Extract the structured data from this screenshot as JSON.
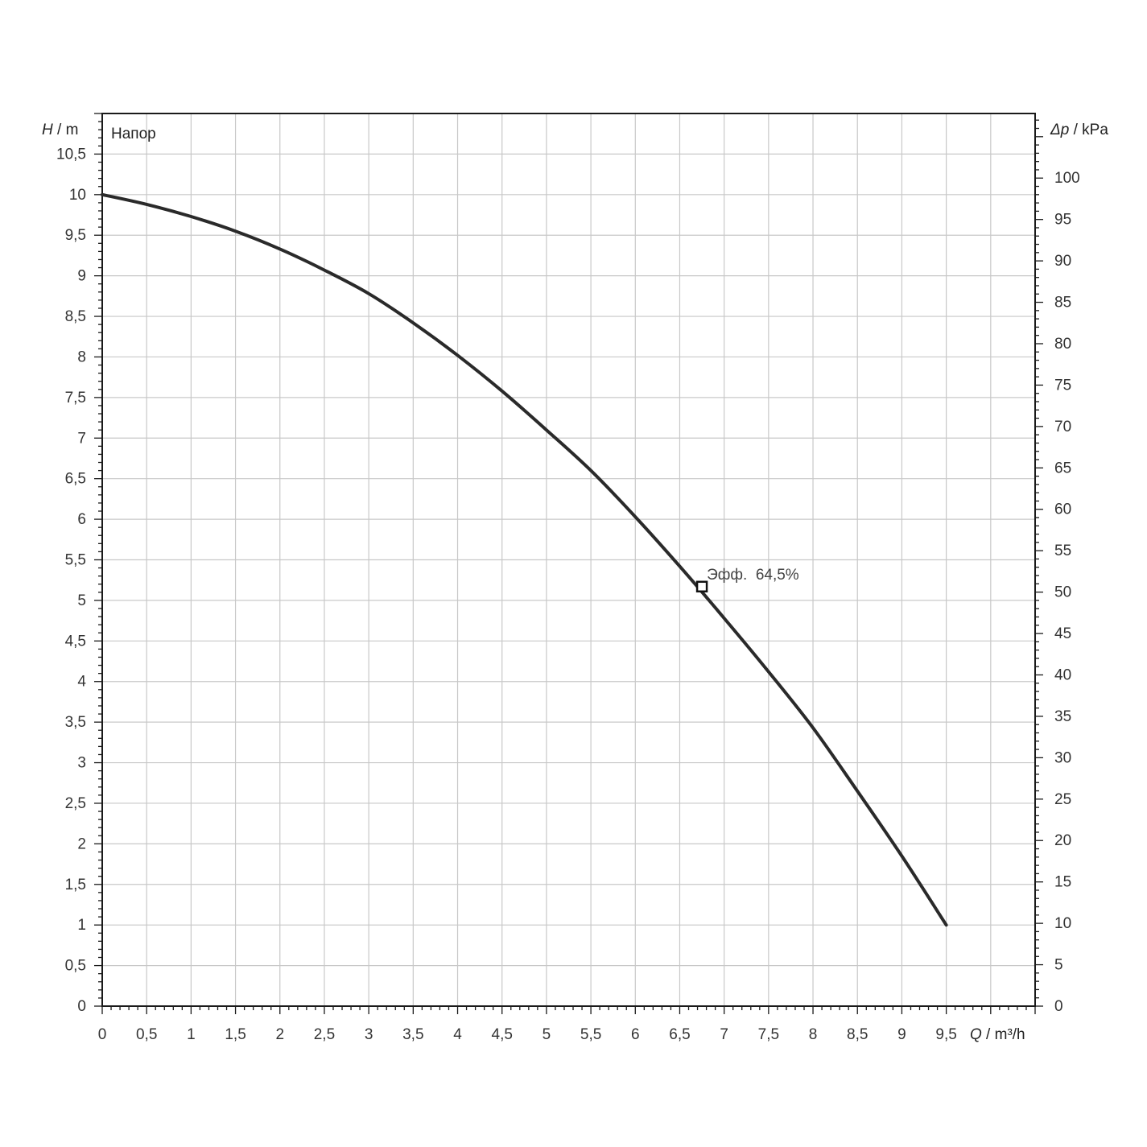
{
  "chart_data": {
    "type": "line",
    "legend_text": "Напор",
    "y_left_label": {
      "symbol": "H",
      "unit": " / m"
    },
    "y_right_label": {
      "symbol": "Δp",
      "unit": " / kPa"
    },
    "x_label": {
      "symbol": "Q",
      "unit": " / m³/h"
    },
    "xlim": [
      0,
      10.5
    ],
    "ylim_left": [
      0,
      11
    ],
    "ylim_right": [
      0,
      107.8
    ],
    "grid": true,
    "x_ticks": [
      "0",
      "0,5",
      "1",
      "1,5",
      "2",
      "2,5",
      "3",
      "3,5",
      "4",
      "4,5",
      "5",
      "5,5",
      "6",
      "6,5",
      "7",
      "7,5",
      "8",
      "8,5",
      "9",
      "9,5"
    ],
    "y_left_ticks": [
      "0",
      "0,5",
      "1",
      "1,5",
      "2",
      "2,5",
      "3",
      "3,5",
      "4",
      "4,5",
      "5",
      "5,5",
      "6",
      "6,5",
      "7",
      "7,5",
      "8",
      "8,5",
      "9",
      "9,5",
      "10",
      "10,5"
    ],
    "y_right_ticks": [
      "0",
      "5",
      "10",
      "15",
      "20",
      "25",
      "30",
      "35",
      "40",
      "45",
      "50",
      "55",
      "60",
      "65",
      "70",
      "75",
      "80",
      "85",
      "90",
      "95",
      "100"
    ],
    "series": [
      {
        "points": [
          [
            0,
            10.0
          ],
          [
            0.5,
            9.88
          ],
          [
            1,
            9.73
          ],
          [
            1.5,
            9.55
          ],
          [
            2,
            9.33
          ],
          [
            2.5,
            9.07
          ],
          [
            3,
            8.78
          ],
          [
            3.5,
            8.42
          ],
          [
            4,
            8.02
          ],
          [
            4.5,
            7.58
          ],
          [
            5,
            7.1
          ],
          [
            5.5,
            6.6
          ],
          [
            6,
            6.03
          ],
          [
            6.5,
            5.42
          ],
          [
            7,
            4.78
          ],
          [
            7.5,
            4.12
          ],
          [
            8,
            3.43
          ],
          [
            8.5,
            2.65
          ],
          [
            9,
            1.85
          ],
          [
            9.5,
            1.0
          ]
        ]
      }
    ],
    "annotation": {
      "text": "Эфф.  64,5%",
      "x": 6.75,
      "y": 5.17
    },
    "colors": {
      "curve": "#2a2a2a",
      "grid": "#c8c8c8",
      "frame": "#1a1a1a"
    }
  }
}
